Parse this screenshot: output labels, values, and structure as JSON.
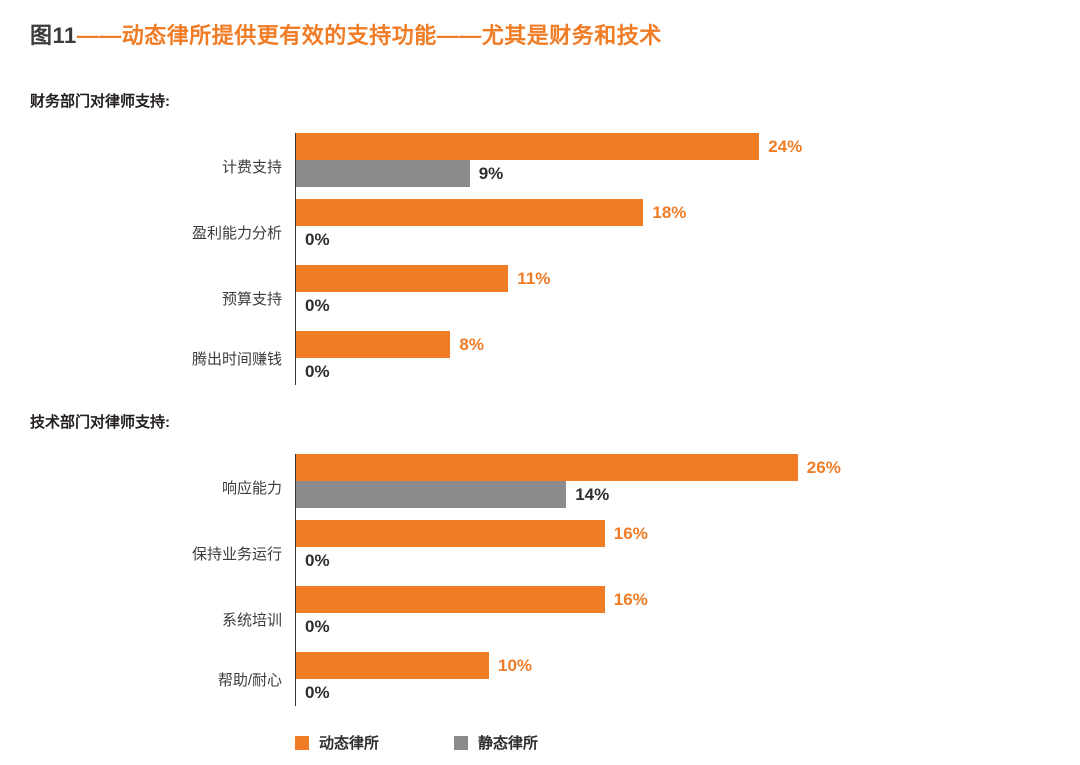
{
  "title": {
    "prefix": "图11",
    "rest": "——动态律所提供更有效的支持功能——尤其是财务和技术"
  },
  "colors": {
    "orange": "#f07c26",
    "gray": "#8b8b8e",
    "dark_text": "#2e2e2e",
    "axis": "#3a3a3a"
  },
  "chart_data": [
    {
      "type": "bar",
      "title": "财务部门对律师支持:",
      "orientation": "horizontal",
      "categories": [
        "计费支持",
        "盈利能力分析",
        "预算支持",
        "腾出时间赚钱"
      ],
      "series": [
        {
          "name": "动态律所",
          "color": "#f07c26",
          "values": [
            24,
            18,
            11,
            8
          ]
        },
        {
          "name": "静态律所",
          "color": "#8b8b8e",
          "values": [
            9,
            0,
            0,
            0
          ]
        }
      ],
      "xlim": [
        0,
        26
      ],
      "value_suffix": "%",
      "value_labels": true,
      "grid": false
    },
    {
      "type": "bar",
      "title": "技术部门对律师支持:",
      "orientation": "horizontal",
      "categories": [
        "响应能力",
        "保持业务运行",
        "系统培训",
        "帮助/耐心"
      ],
      "series": [
        {
          "name": "动态律所",
          "color": "#f07c26",
          "values": [
            26,
            16,
            16,
            10
          ]
        },
        {
          "name": "静态律所",
          "color": "#8b8b8e",
          "values": [
            14,
            0,
            0,
            0
          ]
        }
      ],
      "xlim": [
        0,
        26
      ],
      "value_suffix": "%",
      "value_labels": true,
      "grid": false
    }
  ],
  "legend": [
    {
      "label": "动态律所",
      "color": "#f07c26"
    },
    {
      "label": "静态律所",
      "color": "#8b8b8e"
    }
  ]
}
